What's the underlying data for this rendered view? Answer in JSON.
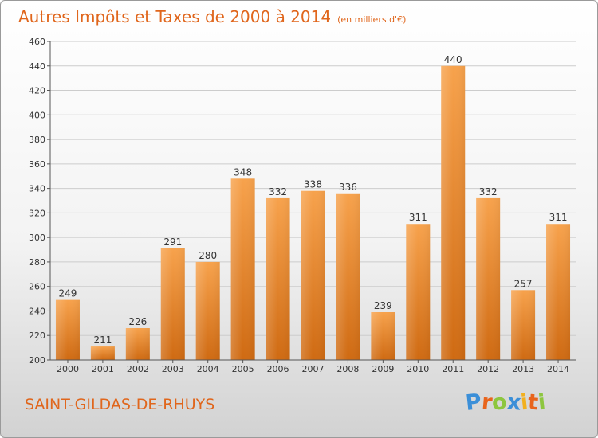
{
  "chart_data": {
    "type": "bar",
    "title": "Autres Impôts et Taxes de 2000 à 2014",
    "subtitle": "(en milliers d'€)",
    "categories": [
      "2000",
      "2001",
      "2002",
      "2003",
      "2004",
      "2005",
      "2006",
      "2007",
      "2008",
      "2009",
      "2010",
      "2011",
      "2012",
      "2013",
      "2014"
    ],
    "values": [
      249,
      211,
      226,
      291,
      280,
      348,
      332,
      338,
      336,
      239,
      311,
      440,
      332,
      257,
      311
    ],
    "ylim": [
      200,
      460
    ],
    "yticks": [
      200,
      220,
      240,
      260,
      280,
      300,
      320,
      340,
      360,
      380,
      400,
      420,
      440,
      460
    ],
    "grid": true,
    "bar_color": "#f08a2c",
    "text_color": "#e0661c"
  },
  "footer": {
    "place": "SAINT-GILDAS-DE-RHUYS",
    "logo": [
      "P",
      "r",
      "o",
      "x",
      "i",
      "t",
      "i"
    ],
    "logo_colors": [
      "#3b8fd8",
      "#e8641c",
      "#8dc63f",
      "#3b8fd8",
      "#f2b01e",
      "#e8641c",
      "#8dc63f"
    ]
  }
}
